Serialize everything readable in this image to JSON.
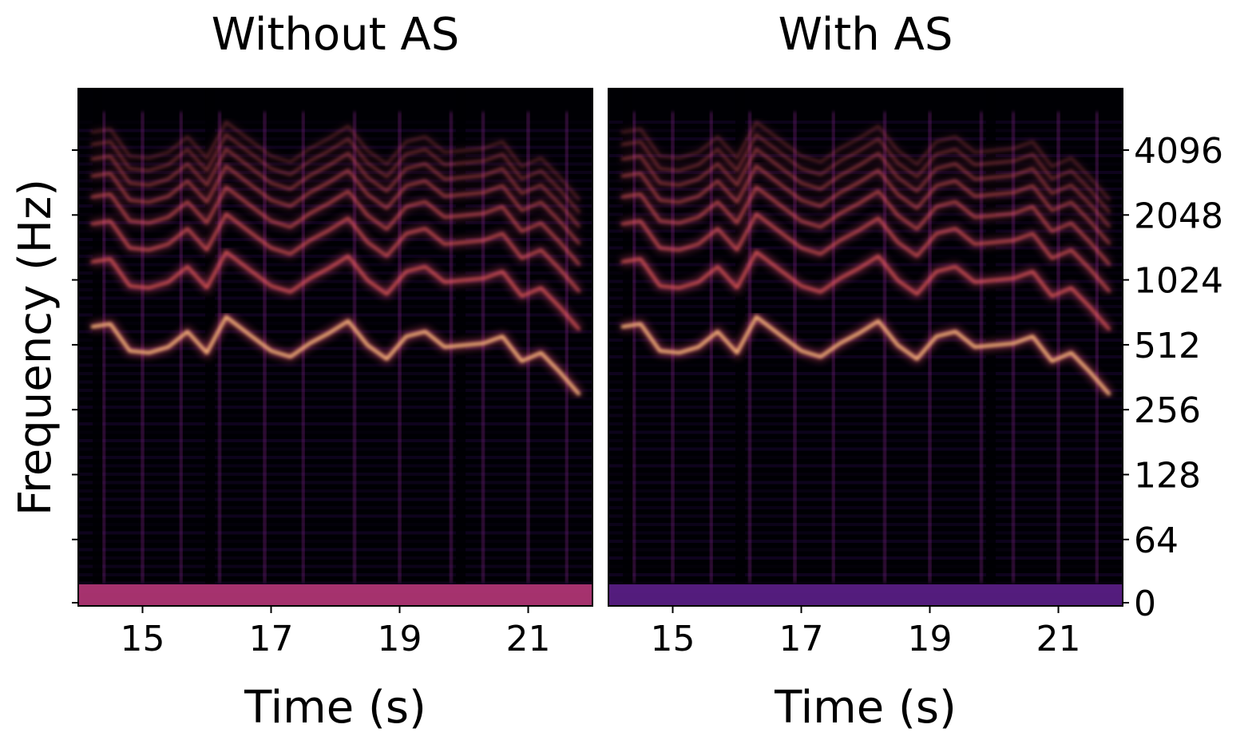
{
  "chart_data": [
    {
      "type": "heatmap",
      "title": "Without AS",
      "xlabel": "Time (s)",
      "ylabel": "Frequency (Hz)",
      "xlim": [
        14,
        22
      ],
      "x_ticks": [
        "15",
        "17",
        "19",
        "21"
      ],
      "y_scale": "log2",
      "y_ticks": [
        "0",
        "64",
        "128",
        "256",
        "512",
        "1024",
        "2048",
        "4096"
      ],
      "colormap": "magma",
      "melody_f0_hz": [
        [
          14.2,
          620
        ],
        [
          14.5,
          640
        ],
        [
          14.8,
          480
        ],
        [
          15.1,
          470
        ],
        [
          15.4,
          500
        ],
        [
          15.7,
          590
        ],
        [
          16.0,
          470
        ],
        [
          16.3,
          690
        ],
        [
          16.7,
          560
        ],
        [
          17.0,
          480
        ],
        [
          17.3,
          450
        ],
        [
          17.6,
          520
        ],
        [
          17.9,
          580
        ],
        [
          18.2,
          660
        ],
        [
          18.5,
          510
        ],
        [
          18.8,
          440
        ],
        [
          19.1,
          560
        ],
        [
          19.4,
          590
        ],
        [
          19.7,
          500
        ],
        [
          20.3,
          520
        ],
        [
          20.6,
          560
        ],
        [
          20.9,
          430
        ],
        [
          21.2,
          470
        ],
        [
          21.5,
          380
        ],
        [
          21.8,
          300
        ]
      ],
      "harmonic_onsets_s": [
        14.4,
        15.0,
        15.6,
        16.2,
        16.9,
        17.5,
        18.3,
        19.0,
        19.8,
        20.3,
        21.0,
        21.6
      ]
    },
    {
      "type": "heatmap",
      "title": "With AS",
      "xlabel": "Time (s)",
      "ylabel": "",
      "xlim": [
        14,
        22
      ],
      "x_ticks": [
        "15",
        "17",
        "19",
        "21"
      ],
      "y_scale": "log2",
      "y_ticks": [
        "0",
        "64",
        "128",
        "256",
        "512",
        "1024",
        "2048",
        "4096"
      ],
      "colormap": "magma",
      "melody_f0_hz": [
        [
          14.2,
          620
        ],
        [
          14.5,
          640
        ],
        [
          14.8,
          480
        ],
        [
          15.1,
          470
        ],
        [
          15.4,
          500
        ],
        [
          15.7,
          590
        ],
        [
          16.0,
          470
        ],
        [
          16.3,
          690
        ],
        [
          16.7,
          560
        ],
        [
          17.0,
          480
        ],
        [
          17.3,
          450
        ],
        [
          17.6,
          520
        ],
        [
          17.9,
          580
        ],
        [
          18.2,
          660
        ],
        [
          18.5,
          510
        ],
        [
          18.8,
          440
        ],
        [
          19.1,
          560
        ],
        [
          19.4,
          590
        ],
        [
          19.7,
          500
        ],
        [
          20.3,
          520
        ],
        [
          20.6,
          560
        ],
        [
          20.9,
          430
        ],
        [
          21.2,
          470
        ],
        [
          21.5,
          380
        ],
        [
          21.8,
          300
        ]
      ],
      "harmonic_onsets_s": [
        14.4,
        15.0,
        15.6,
        16.2,
        16.9,
        17.5,
        18.3,
        19.0,
        19.8,
        20.3,
        21.0,
        21.6
      ]
    }
  ],
  "colors": {
    "background": "#000004",
    "low": "#1b0c41",
    "mid": "#7b2382",
    "high": "#d6456c",
    "peak": "#fcb97c"
  }
}
